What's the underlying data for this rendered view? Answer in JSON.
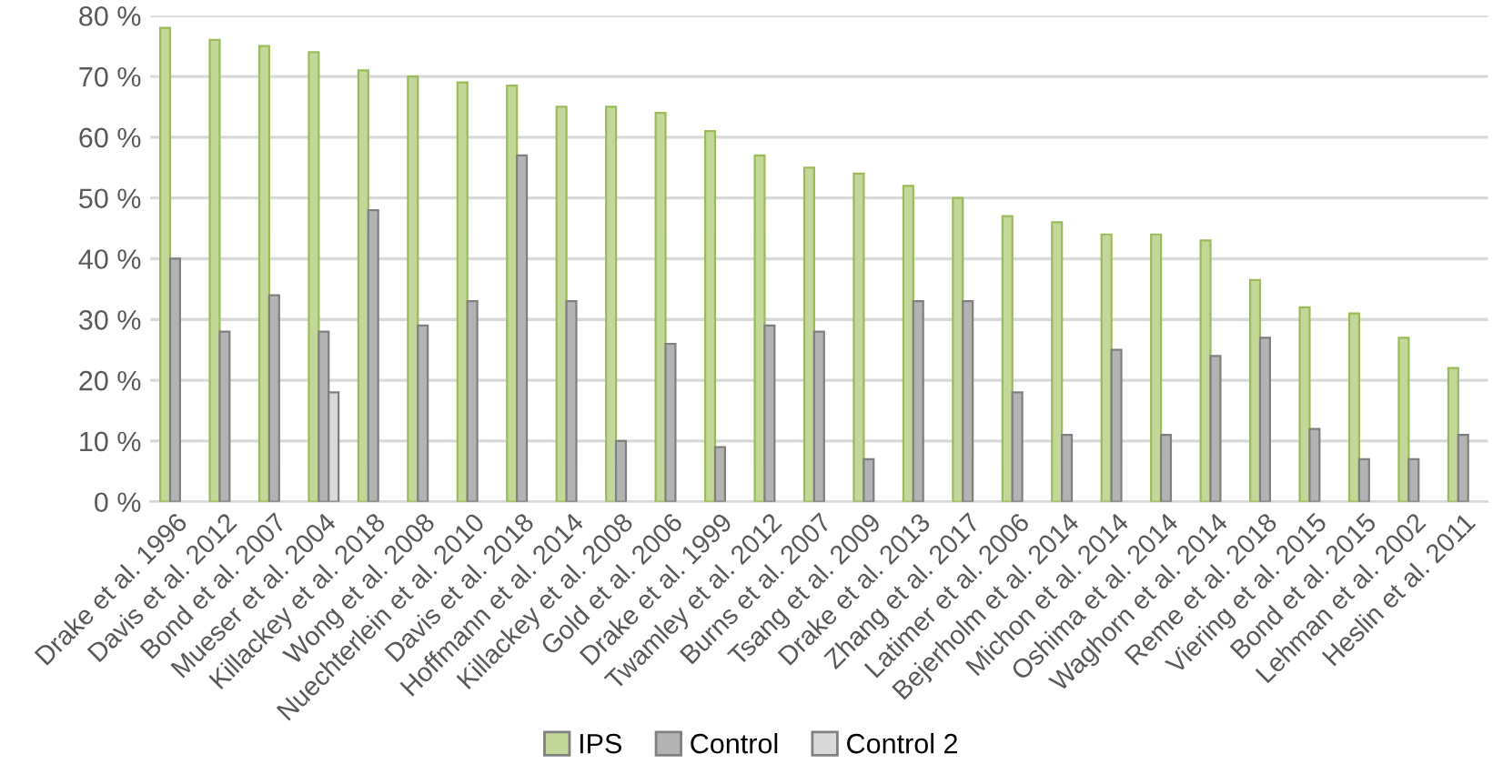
{
  "chart_data": {
    "type": "bar",
    "categories": [
      "Drake et al. 1996",
      "Davis et al. 2012",
      "Bond et al. 2007",
      "Mueser et al. 2004",
      "Killackey et al. 2018",
      "Wong et al. 2008",
      "Nuechterlein et al. 2010",
      "Davis et al. 2018",
      "Hoffmann et al. 2014",
      "Killackey et al. 2008",
      "Gold et al. 2006",
      "Drake et al. 1999",
      "Twamley et al. 2012",
      "Burns et al. 2007",
      "Tsang et al. 2009",
      "Drake et al. 2013",
      "Zhang et al. 2017",
      "Latimer et al. 2006",
      "Bejerholm et al. 2014",
      "Michon et al. 2014",
      "Oshima et al. 2014",
      "Waghorn et al. 2014",
      "Reme et al. 2018",
      "Viering et al. 2015",
      "Bond et al. 2015",
      "Lehman et al. 2002",
      "Heslin et al. 2011"
    ],
    "series": [
      {
        "name": "IPS",
        "color": "#c4d79b",
        "values": [
          78,
          76,
          75,
          74,
          71,
          70,
          69,
          68.5,
          65,
          65,
          64,
          61,
          57,
          55,
          54,
          52,
          50,
          47,
          46,
          44,
          44,
          43,
          36.5,
          32,
          31,
          27,
          22
        ]
      },
      {
        "name": "Control",
        "color": "#b3b3b3",
        "values": [
          40,
          28,
          34,
          28,
          48,
          29,
          33,
          57,
          33,
          10,
          26,
          9,
          29,
          28,
          7,
          33,
          33,
          18,
          11,
          25,
          11,
          24,
          27,
          12,
          7,
          7,
          11
        ]
      },
      {
        "name": "Control 2",
        "color": "#d9d9d9",
        "values": [
          null,
          null,
          null,
          18,
          null,
          null,
          null,
          null,
          null,
          null,
          null,
          null,
          null,
          null,
          null,
          null,
          null,
          null,
          null,
          null,
          null,
          null,
          null,
          null,
          null,
          null,
          null
        ]
      }
    ],
    "ylim": [
      0,
      80
    ],
    "yticks": [
      {
        "value": 0,
        "label": "0 %"
      },
      {
        "value": 10,
        "label": "10 %"
      },
      {
        "value": 20,
        "label": "20 %"
      },
      {
        "value": 30,
        "label": "30 %"
      },
      {
        "value": 40,
        "label": "40 %"
      },
      {
        "value": 50,
        "label": "50 %"
      },
      {
        "value": 60,
        "label": "60 %"
      },
      {
        "value": 70,
        "label": "70 %"
      },
      {
        "value": 80,
        "label": "80 %"
      }
    ],
    "grid": "y",
    "legend": "bottom"
  }
}
